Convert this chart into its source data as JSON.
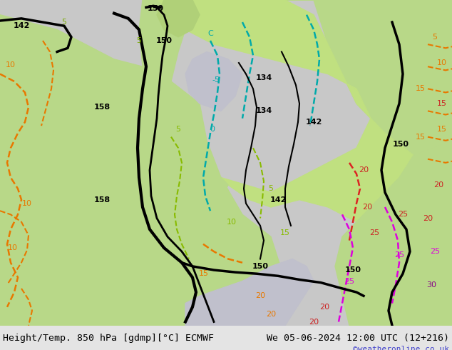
{
  "title_left": "Height/Temp. 850 hPa [gdmp][°C] ECMWF",
  "title_right": "We 05-06-2024 12:00 UTC (12+216)",
  "credit": "©weatheronline.co.uk",
  "bg_color": "#d0d0d0",
  "land_green_light": "#c8e6a0",
  "land_green_dark": "#a8d060",
  "water_gray": "#b8b8c8",
  "figsize": [
    6.34,
    4.9
  ],
  "dpi": 100,
  "bottom_bar_color": "#e8e8e8",
  "title_fontsize": 9.5,
  "credit_color": "#4444cc",
  "credit_fontsize": 8
}
